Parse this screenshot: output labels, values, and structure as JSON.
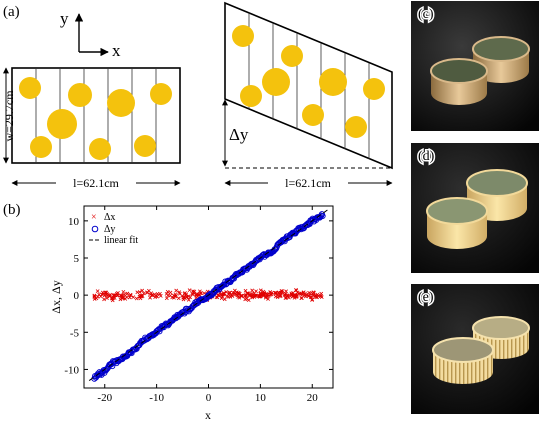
{
  "panel_labels": {
    "a": "(a)",
    "b": "(b)",
    "c": "(c)",
    "d": "(d)",
    "e": "(e)"
  },
  "schematic": {
    "y_axis_label": "y",
    "x_axis_label": "x",
    "width_label": "w=29.7cm",
    "length_label_left": "l=62.1cm",
    "length_label_right": "l=62.1cm",
    "shear_label": "Δy"
  },
  "colors": {
    "disk": "#f4c20d",
    "delta_x_series": "#e00000",
    "delta_y_series": "#0000cc",
    "fit_line": "#000000"
  },
  "chart_data": {
    "type": "scatter",
    "xlabel": "x",
    "ylabel": "Δx, Δy",
    "xlim": [
      -24,
      24
    ],
    "ylim": [
      -12.5,
      12
    ],
    "xticks": [
      -20,
      -10,
      0,
      10,
      20
    ],
    "yticks": [
      -10,
      -5,
      0,
      5,
      10
    ],
    "legend_position": "top-left",
    "series": [
      {
        "name": "Δx",
        "marker": "x",
        "color": "#e00000",
        "x_range": [
          -22,
          22
        ],
        "y_mean": 0,
        "y_spread": 0.6
      },
      {
        "name": "Δy",
        "marker": "o",
        "color": "#0000cc",
        "x_range": [
          -22,
          22
        ],
        "slope": 0.5,
        "intercept": 0
      },
      {
        "name": "linear fit",
        "marker": "dashed",
        "color": "#000000",
        "slope": 0.5,
        "intercept": 0
      }
    ]
  }
}
